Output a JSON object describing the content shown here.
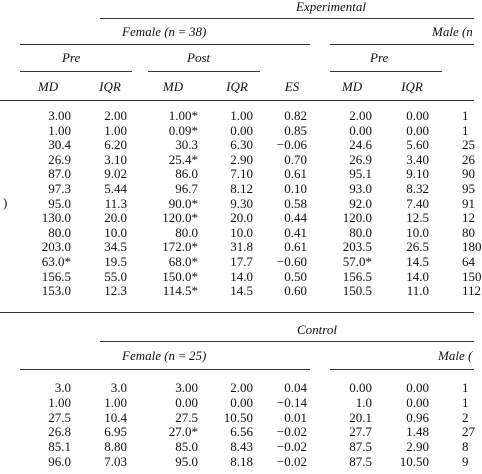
{
  "experimental": {
    "title": "Experimental",
    "female": "Female (n = 38)",
    "male": "Male (n",
    "pre": "Pre",
    "post": "Post",
    "pre_male": "Pre",
    "headers": [
      "MD",
      "IQR",
      "MD",
      "IQR",
      "ES",
      "MD",
      "IQR"
    ],
    "side_mark": ")",
    "rows": [
      [
        "3.00",
        "2.00",
        "1.00*",
        "1.00",
        "0.82",
        "2.00",
        "0.00",
        "1"
      ],
      [
        "1.00",
        "1.00",
        "0.09*",
        "0.00",
        "0.85",
        "0.00",
        "0.00",
        "1"
      ],
      [
        "30.4",
        "6.20",
        "30.3",
        "6.30",
        "−0.06",
        "24.6",
        "5.60",
        "25"
      ],
      [
        "26.9",
        "3.10",
        "25.4*",
        "2.90",
        "0.70",
        "26.9",
        "3.40",
        "26"
      ],
      [
        "87.0",
        "9.02",
        "86.0",
        "7.10",
        "0.61",
        "95.1",
        "9.10",
        "90"
      ],
      [
        "97.3",
        "5.44",
        "96.7",
        "8.12",
        "0.10",
        "93.0",
        "8.32",
        "95"
      ],
      [
        "95.0",
        "11.3",
        "90.0*",
        "9.30",
        "0.58",
        "92.0",
        "7.40",
        "91"
      ],
      [
        "130.0",
        "20.0",
        "120.0*",
        "20.0",
        "0.44",
        "120.0",
        "12.5",
        "12"
      ],
      [
        "80.0",
        "10.0",
        "80.0",
        "10.0",
        "0.41",
        "80.0",
        "10.0",
        "80"
      ],
      [
        "203.0",
        "34.5",
        "172.0*",
        "31.8",
        "0.61",
        "203.5",
        "26.5",
        "180"
      ],
      [
        "63.0*",
        "19.5",
        "68.0*",
        "17.7",
        "−0.60",
        "57.0*",
        "14.5",
        "64"
      ],
      [
        "156.5",
        "55.0",
        "150.0*",
        "14.0",
        "0.50",
        "156.5",
        "14.0",
        "150"
      ],
      [
        "153.0",
        "12.3",
        "114.5*",
        "14.5",
        "0.60",
        "150.5",
        "11.0",
        "112"
      ]
    ]
  },
  "control": {
    "title": "Control",
    "female": "Female (n = 25)",
    "male": "Male (",
    "rows": [
      [
        "3.0",
        "3.0",
        "3.00",
        "2.00",
        "0.04",
        "0.00",
        "0.00",
        "1"
      ],
      [
        "1.00",
        "1.00",
        "0.00",
        "0.00",
        "−0.14",
        "1.0",
        "0.00",
        "1"
      ],
      [
        "27.5",
        "10.4",
        "27.5",
        "10.50",
        "0.01",
        "20.1",
        "0.96",
        "2"
      ],
      [
        "26.8",
        "6.95",
        "27.0*",
        "6.56",
        "−0.02",
        "27.7",
        "1.48",
        "27"
      ],
      [
        "85.1",
        "8.80",
        "85.0",
        "8.43",
        "−0.02",
        "87.5",
        "2.90",
        "8"
      ],
      [
        "96.0",
        "7.03",
        "95.0",
        "8.18",
        "−0.02",
        "87.5",
        "10.50",
        "9"
      ]
    ]
  }
}
